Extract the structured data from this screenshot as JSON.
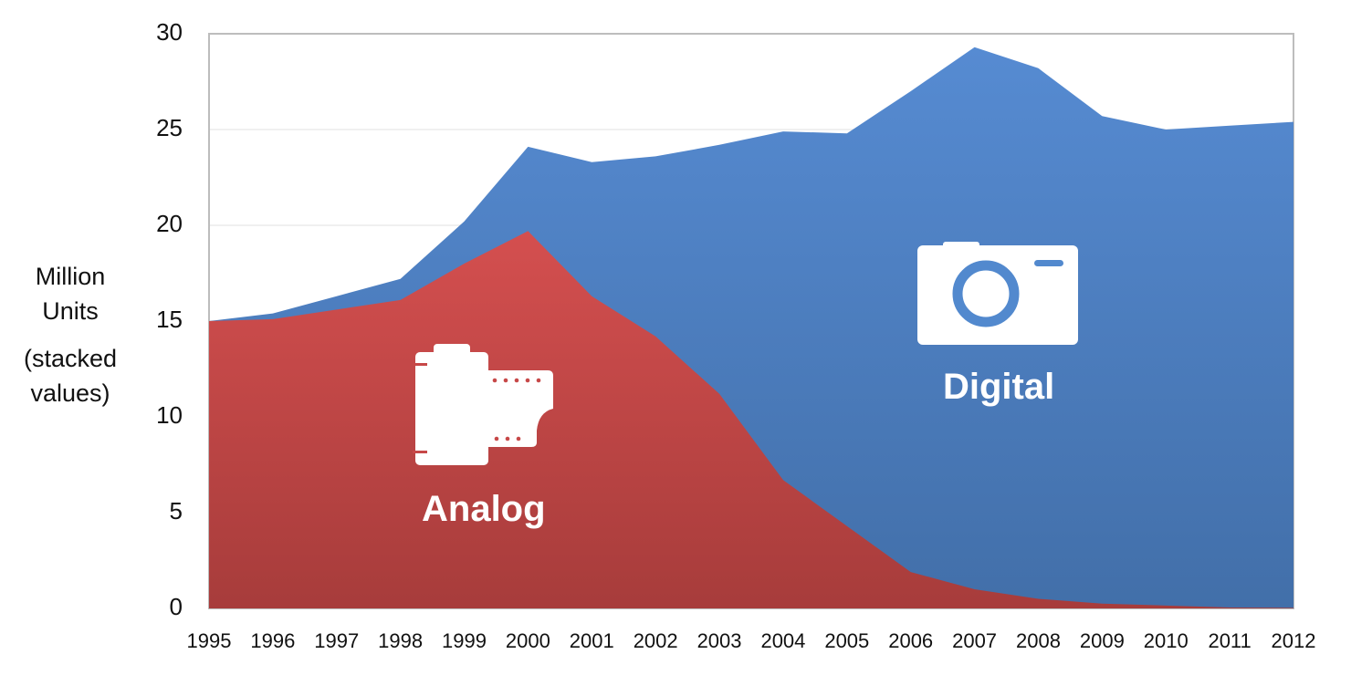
{
  "chart_data": {
    "type": "area",
    "stacked": true,
    "title": "",
    "xlabel": "",
    "ylabel": "Million Units",
    "ylabel_note": "(stacked values)",
    "ylim": [
      0,
      30
    ],
    "yticks": [
      0,
      5,
      10,
      15,
      20,
      25,
      30
    ],
    "grid": true,
    "legend": "inline labels with icons",
    "categories": [
      "1995",
      "1996",
      "1997",
      "1998",
      "1999",
      "2000",
      "2001",
      "2002",
      "2003",
      "2004",
      "2005",
      "2006",
      "2007",
      "2008",
      "2009",
      "2010",
      "2011",
      "2012"
    ],
    "series": [
      {
        "name": "Analog",
        "icon": "film-roll-icon",
        "color": "#C9474A",
        "values": [
          15.0,
          15.1,
          15.6,
          16.1,
          18.0,
          19.7,
          16.3,
          14.2,
          11.2,
          6.7,
          4.3,
          1.9,
          1.0,
          0.5,
          0.25,
          0.15,
          0.05,
          0.03
        ]
      },
      {
        "name": "Digital",
        "icon": "camera-icon",
        "color": "#5087CC",
        "values": [
          0.0,
          0.3,
          0.7,
          1.1,
          2.2,
          4.4,
          7.0,
          9.4,
          13.0,
          18.2,
          20.5,
          25.1,
          28.3,
          27.7,
          25.45,
          24.85,
          25.15,
          25.37
        ]
      }
    ],
    "stacked_totals": [
      15.0,
      15.4,
      16.3,
      17.2,
      20.2,
      24.1,
      23.3,
      23.6,
      24.2,
      24.9,
      24.8,
      27.0,
      29.3,
      28.2,
      25.7,
      25.0,
      25.2,
      25.4
    ]
  },
  "labels": {
    "ylabel_line1": "Million",
    "ylabel_line2": "Units",
    "ylabel_line3": "(stacked",
    "ylabel_line4": "values)",
    "analog": "Analog",
    "digital": "Digital"
  },
  "yticks_text": [
    "0",
    "5",
    "10",
    "15",
    "20",
    "25",
    "30"
  ],
  "xticks_text": [
    "1995",
    "1996",
    "1997",
    "1998",
    "1999",
    "2000",
    "2001",
    "2002",
    "2003",
    "2004",
    "2005",
    "2006",
    "2007",
    "2008",
    "2009",
    "2010",
    "2011",
    "2012"
  ]
}
